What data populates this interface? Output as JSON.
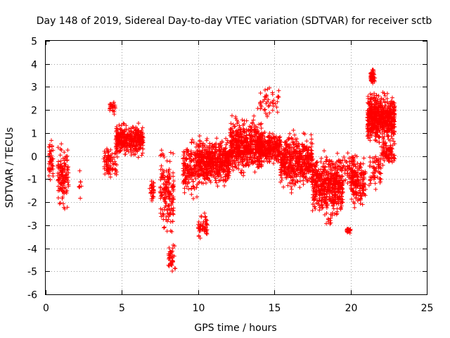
{
  "chart_data": {
    "type": "scatter",
    "title": "Day 148 of 2019, Sidereal Day-to-day VTEC variation (SDTVAR) for receiver sctb",
    "xlabel": "GPS time / hours",
    "ylabel": "SDTVAR / TECUs",
    "xlim": [
      0,
      25
    ],
    "ylim": [
      -6,
      5
    ],
    "xticks": [
      "0",
      "5",
      "10",
      "15",
      "20",
      "25"
    ],
    "yticks": [
      "-6",
      "-5",
      "-4",
      "-3",
      "-2",
      "-1",
      "0",
      "1",
      "2",
      "3",
      "4",
      "5"
    ],
    "grid": true,
    "marker": "+",
    "color": "#ff0000",
    "series": [
      {
        "name": "SDTVAR",
        "clusters": [
          {
            "x": [
              0.2,
              0.5
            ],
            "y": [
              -1.5,
              1.0
            ],
            "n": 45
          },
          {
            "x": [
              0.8,
              1.5
            ],
            "y": [
              -2.6,
              0.8
            ],
            "n": 130
          },
          {
            "x": [
              2.15,
              2.35
            ],
            "y": [
              -2.3,
              0.0
            ],
            "n": 8
          },
          {
            "x": [
              3.8,
              4.3
            ],
            "y": [
              -1.2,
              0.6
            ],
            "n": 60
          },
          {
            "x": [
              4.2,
              4.6
            ],
            "y": [
              1.8,
              2.5
            ],
            "n": 25
          },
          {
            "x": [
              4.3,
              4.7
            ],
            "y": [
              -1.0,
              0.4
            ],
            "n": 20
          },
          {
            "x": [
              4.6,
              6.4
            ],
            "y": [
              -0.2,
              1.6
            ],
            "n": 360
          },
          {
            "x": [
              6.8,
              7.1
            ],
            "y": [
              -2.3,
              -0.8
            ],
            "n": 30
          },
          {
            "x": [
              7.5,
              8.4
            ],
            "y": [
              -3.9,
              0.7
            ],
            "n": 170
          },
          {
            "x": [
              8.0,
              8.5
            ],
            "y": [
              -5.2,
              -3.6
            ],
            "n": 40
          },
          {
            "x": [
              9.0,
              10.0
            ],
            "y": [
              -2.0,
              1.0
            ],
            "n": 170
          },
          {
            "x": [
              10.0,
              10.6
            ],
            "y": [
              -3.7,
              -2.4
            ],
            "n": 50
          },
          {
            "x": [
              10.0,
              12.1
            ],
            "y": [
              -1.5,
              1.0
            ],
            "n": 520
          },
          {
            "x": [
              12.1,
              14.2
            ],
            "y": [
              -1.0,
              1.9
            ],
            "n": 560
          },
          {
            "x": [
              13.9,
              15.3
            ],
            "y": [
              1.5,
              3.2
            ],
            "n": 45
          },
          {
            "x": [
              14.0,
              15.4
            ],
            "y": [
              -0.5,
              1.2
            ],
            "n": 260
          },
          {
            "x": [
              15.4,
              17.5
            ],
            "y": [
              -1.7,
              1.3
            ],
            "n": 470
          },
          {
            "x": [
              17.5,
              19.5
            ],
            "y": [
              -2.9,
              0.4
            ],
            "n": 520
          },
          {
            "x": [
              18.4,
              18.7
            ],
            "y": [
              -3.2,
              -2.4
            ],
            "n": 8
          },
          {
            "x": [
              19.5,
              20.3
            ],
            "y": [
              -1.4,
              0.4
            ],
            "n": 55
          },
          {
            "x": [
              19.75,
              20.0
            ],
            "y": [
              -3.4,
              -3.1
            ],
            "n": 25
          },
          {
            "x": [
              20.0,
              21.0
            ],
            "y": [
              -2.5,
              0.3
            ],
            "n": 170
          },
          {
            "x": [
              21.1,
              22.9
            ],
            "y": [
              0.3,
              3.0
            ],
            "n": 620
          },
          {
            "x": [
              21.3,
              21.6
            ],
            "y": [
              3.0,
              4.0
            ],
            "n": 45
          },
          {
            "x": [
              21.2,
              22.0
            ],
            "y": [
              -1.7,
              0.5
            ],
            "n": 60
          },
          {
            "x": [
              22.0,
              22.9
            ],
            "y": [
              -0.6,
              0.8
            ],
            "n": 80
          }
        ]
      }
    ]
  }
}
